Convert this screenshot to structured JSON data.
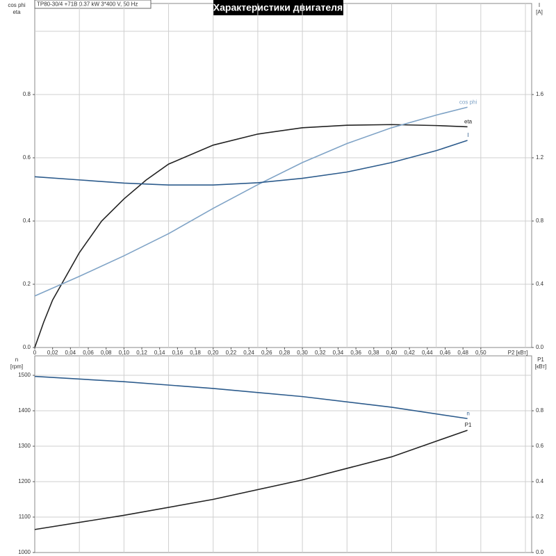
{
  "chart_data": [
    {
      "type": "line",
      "title": "Характеристики двигателя",
      "subtitle": "TP80-30/4 +71B   0.37 kW   3*400 V, 50 Hz",
      "xlabel": "P2 [кВт]",
      "ylabel": [
        "cos phi",
        "eta"
      ],
      "y2label": [
        "I",
        "[A]"
      ],
      "xlim": [
        0,
        0.557
      ],
      "ylim": [
        0,
        1.088
      ],
      "y2lim": [
        0,
        2.176
      ],
      "xticks": [
        0,
        {
          "value": 0.02,
          "label": "0,02"
        },
        {
          "value": 0.04,
          "label": "0,04"
        },
        {
          "value": 0.06,
          "label": "0,06"
        },
        {
          "value": 0.08,
          "label": "0,08"
        },
        {
          "value": 0.1,
          "label": "0,10"
        },
        {
          "value": 0.12,
          "label": "0,12"
        },
        {
          "value": 0.14,
          "label": "0,14"
        },
        {
          "value": 0.16,
          "label": "0,16"
        },
        {
          "value": 0.18,
          "label": "0,18"
        },
        {
          "value": 0.2,
          "label": "0,20"
        },
        {
          "value": 0.22,
          "label": "0,22"
        },
        {
          "value": 0.24,
          "label": "0,24"
        },
        {
          "value": 0.26,
          "label": "0,26"
        },
        {
          "value": 0.28,
          "label": "0,28"
        },
        {
          "value": 0.3,
          "label": "0,30"
        },
        {
          "value": 0.32,
          "label": "0,32"
        },
        {
          "value": 0.34,
          "label": "0,34"
        },
        {
          "value": 0.36,
          "label": "0,36"
        },
        {
          "value": 0.38,
          "label": "0,38"
        },
        {
          "value": 0.4,
          "label": "0,40"
        },
        {
          "value": 0.42,
          "label": "0,42"
        },
        {
          "value": 0.44,
          "label": "0,44"
        },
        {
          "value": 0.46,
          "label": "0,46"
        },
        {
          "value": 0.48,
          "label": "0,48"
        },
        {
          "value": 0.5,
          "label": "0,50"
        }
      ],
      "yticks": [
        {
          "value": 0,
          "label": "0.0"
        },
        0.2,
        0.4,
        0.6,
        0.8
      ],
      "y2ticks": [
        {
          "value": 0,
          "label": "0.0"
        },
        0.4,
        0.8,
        1.2,
        1.6
      ],
      "xgrid": [
        0.05,
        0.1,
        0.15,
        0.2,
        0.25,
        0.3,
        0.35,
        0.4,
        0.45,
        0.5,
        0.55
      ],
      "ygrid": [
        0.2,
        0.4,
        0.6,
        0.8,
        1.0
      ],
      "series": [
        {
          "name": "eta",
          "color": "#222222",
          "x": [
            0,
            0.01,
            0.02,
            0.03,
            0.05,
            0.075,
            0.1,
            0.125,
            0.15,
            0.2,
            0.25,
            0.3,
            0.35,
            0.4,
            0.45,
            0.485
          ],
          "values": [
            0,
            0.08,
            0.15,
            0.2,
            0.3,
            0.4,
            0.47,
            0.53,
            0.58,
            0.64,
            0.675,
            0.695,
            0.703,
            0.705,
            0.702,
            0.698
          ]
        },
        {
          "name": "cos phi",
          "color": "#7fa3c6",
          "x": [
            0,
            0.05,
            0.1,
            0.15,
            0.2,
            0.25,
            0.3,
            0.35,
            0.4,
            0.45,
            0.485
          ],
          "values": [
            0.163,
            0.225,
            0.29,
            0.36,
            0.44,
            0.515,
            0.585,
            0.645,
            0.695,
            0.735,
            0.76
          ]
        },
        {
          "name": "I",
          "color": "#2c5b8c",
          "axis": "y2",
          "x": [
            0,
            0.05,
            0.1,
            0.15,
            0.2,
            0.25,
            0.3,
            0.35,
            0.4,
            0.45,
            0.485
          ],
          "values": [
            1.08,
            1.06,
            1.04,
            1.028,
            1.028,
            1.042,
            1.07,
            1.11,
            1.17,
            1.245,
            1.31
          ]
        }
      ]
    },
    {
      "type": "line",
      "ylabel": [
        "n",
        "[rpm]"
      ],
      "y2label": [
        "P1",
        "[кВт]"
      ],
      "xlim": [
        0,
        0.557
      ],
      "ylim": [
        1000,
        1555
      ],
      "y2lim": [
        0,
        1.11
      ],
      "yticks": [
        1000,
        1100,
        1200,
        1300,
        1400,
        1500
      ],
      "y2ticks": [
        {
          "value": 0,
          "label": "0.0"
        },
        0.2,
        0.4,
        0.6,
        0.8
      ],
      "xgrid": [
        0.05,
        0.1,
        0.15,
        0.2,
        0.25,
        0.3,
        0.35,
        0.4,
        0.45,
        0.5,
        0.55
      ],
      "series": [
        {
          "name": "n",
          "color": "#2c5b8c",
          "x": [
            0,
            0.1,
            0.2,
            0.3,
            0.4,
            0.485
          ],
          "values": [
            1497,
            1482,
            1463,
            1440,
            1410,
            1378
          ]
        },
        {
          "name": "P1",
          "color": "#222222",
          "axis": "y2",
          "x": [
            0,
            0.1,
            0.2,
            0.3,
            0.4,
            0.485
          ],
          "values": [
            0.13,
            0.21,
            0.3,
            0.41,
            0.54,
            0.69
          ]
        }
      ]
    }
  ]
}
